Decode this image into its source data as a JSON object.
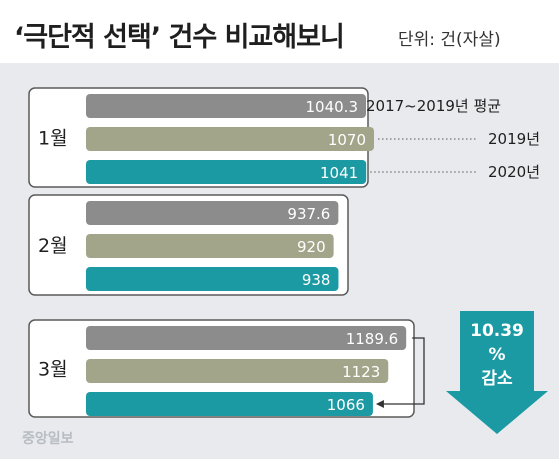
{
  "header": {
    "title": "‘극단적 선택’ 건수 비교해보니",
    "unit": "단위: 건(자살)"
  },
  "logo": {
    "text": "중앙일보"
  },
  "colors": {
    "avg": "#8c8c8c",
    "y2019": "#a3a58a",
    "y2020": "#1b9aa4",
    "panel": "#e8eaed",
    "box": "#ffffff"
  },
  "chart_data": {
    "type": "bar",
    "orientation": "horizontal",
    "title": "‘극단적 선택’ 건수 비교해보니",
    "unit": "단위: 건(자살)",
    "categories": [
      "1월",
      "2월",
      "3월"
    ],
    "series": [
      {
        "name": "2017~2019년 평균",
        "values": [
          1040.3,
          937.6,
          1189.6
        ]
      },
      {
        "name": "2019년",
        "values": [
          1070,
          920,
          1123
        ]
      },
      {
        "name": "2020년",
        "values": [
          1041,
          938,
          1066
        ]
      }
    ],
    "value_labels": [
      [
        "1040.3",
        "1070",
        "1041"
      ],
      [
        "937.6",
        "920",
        "938"
      ],
      [
        "1189.6",
        "1123",
        "1066"
      ]
    ],
    "annotation": {
      "value": "10.39",
      "percent": "%",
      "text": "감소"
    },
    "legend_placement": "right of 1월 group",
    "grid": false
  }
}
